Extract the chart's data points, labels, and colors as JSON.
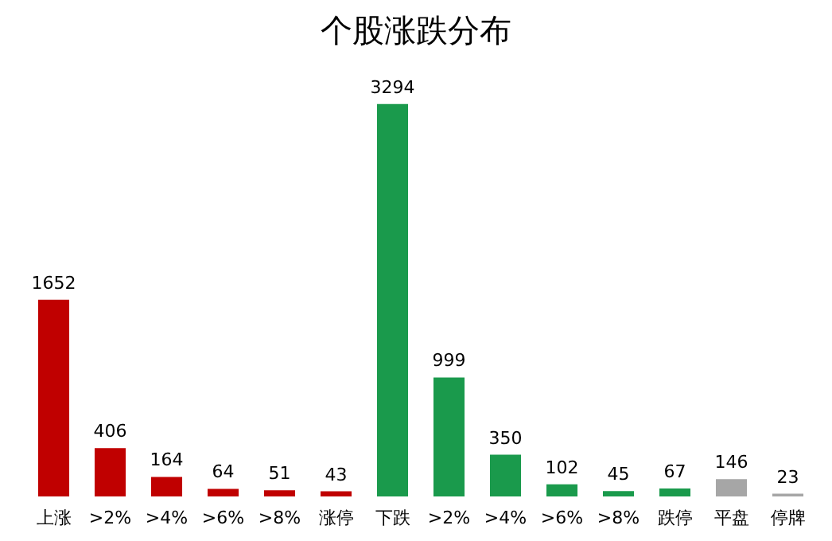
{
  "chart_data": {
    "type": "bar",
    "title": "个股涨跌分布",
    "categories": [
      "上涨",
      ">2%",
      ">4%",
      ">6%",
      ">8%",
      "涨停",
      "下跌",
      ">2%",
      ">4%",
      ">6%",
      ">8%",
      "跌停",
      "平盘",
      "停牌"
    ],
    "values": [
      1652,
      406,
      164,
      64,
      51,
      43,
      3294,
      999,
      350,
      102,
      45,
      67,
      146,
      23
    ],
    "colors": [
      "#c00000",
      "#c00000",
      "#c00000",
      "#c00000",
      "#c00000",
      "#c00000",
      "#1a9a4c",
      "#1a9a4c",
      "#1a9a4c",
      "#1a9a4c",
      "#1a9a4c",
      "#1a9a4c",
      "#a6a6a6",
      "#a6a6a6"
    ],
    "data_labels": true
  }
}
